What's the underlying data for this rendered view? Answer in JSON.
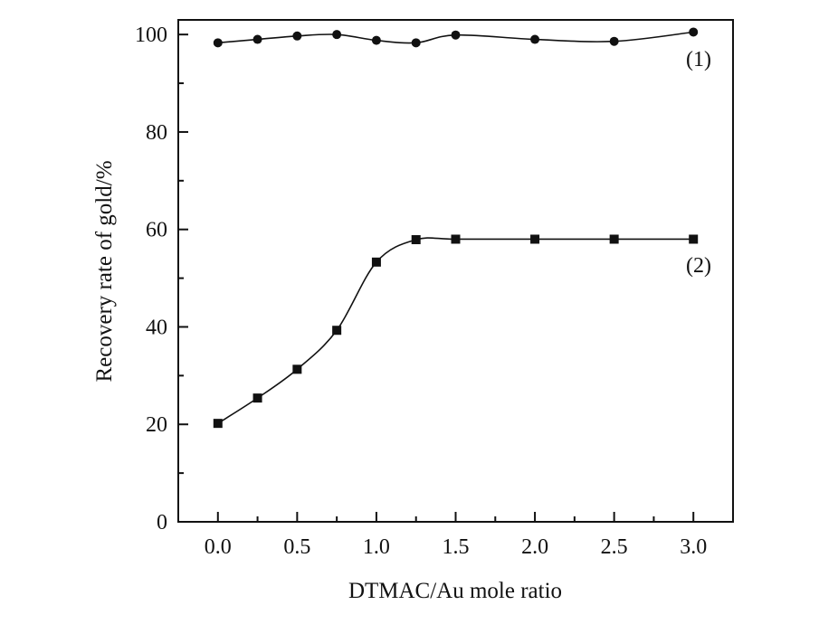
{
  "chart_data": {
    "type": "line",
    "title": "",
    "xlabel": "DTMAC/Au mole ratio",
    "ylabel": "Recovery rate of gold/%",
    "xlim": [
      -0.25,
      3.25
    ],
    "ylim": [
      0,
      103
    ],
    "x_ticks": [
      0.0,
      0.5,
      1.0,
      1.5,
      2.0,
      2.5,
      3.0
    ],
    "x_tick_labels": [
      "0.0",
      "0.5",
      "1.0",
      "1.5",
      "2.0",
      "2.5",
      "3.0"
    ],
    "y_ticks": [
      0,
      20,
      40,
      60,
      80,
      100
    ],
    "y_tick_labels": [
      "0",
      "20",
      "40",
      "60",
      "80",
      "100"
    ],
    "grid": false,
    "legend": "none",
    "series": [
      {
        "label": "(1)",
        "marker": "circle",
        "x": [
          0.0,
          0.25,
          0.5,
          0.75,
          1.0,
          1.25,
          1.5,
          2.0,
          2.5,
          3.0
        ],
        "y": [
          98.3,
          99.0,
          99.7,
          100.0,
          98.8,
          98.3,
          99.9,
          99.0,
          98.6,
          100.5
        ]
      },
      {
        "label": "(2)",
        "marker": "square",
        "x": [
          0.0,
          0.25,
          0.5,
          0.75,
          1.0,
          1.25,
          1.5,
          2.0,
          2.5,
          3.0
        ],
        "y": [
          20.2,
          25.4,
          31.3,
          39.3,
          53.3,
          57.9,
          58.0,
          58.0,
          58.0,
          58.0
        ]
      }
    ]
  }
}
